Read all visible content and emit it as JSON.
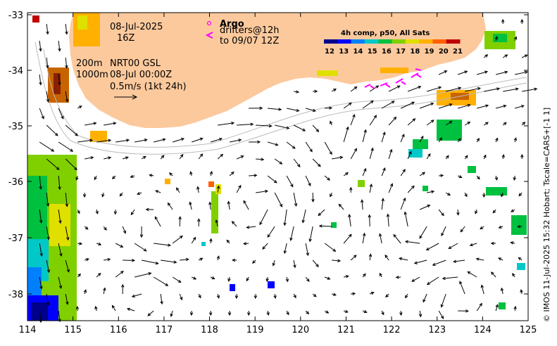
{
  "map": {
    "date": "08-Jul-2025",
    "hour": "16Z",
    "depth_shallow": "200m",
    "depth_deep": "1000m",
    "model": "NRT00 GSL",
    "model_time": "08-Jul 00:00Z",
    "velocity_scale": "0.5m/s (1kt 24h)",
    "argo_label": "Argo",
    "drifter_label": "drifters@12h",
    "drifter_range": "to 09/07 12Z",
    "credit": "© IMOS 11-Jul-2025 15:32 Hobart; Tscale=CARS+[-1 1]",
    "x_ticks": [
      "114",
      "115",
      "116",
      "117",
      "118",
      "119",
      "120",
      "121",
      "122",
      "123",
      "124",
      "125"
    ],
    "y_ticks": [
      "-33",
      "-34",
      "-35",
      "-36",
      "-37",
      "-38"
    ],
    "colors": {
      "land": "#fcc99d",
      "ocean": "#ffffff",
      "drifter": "#ff00ff"
    }
  },
  "legend": {
    "title": "4h comp, p50, All Sats",
    "ticks": [
      "12",
      "13",
      "14",
      "15",
      "16",
      "17",
      "18",
      "19",
      "20",
      "21"
    ],
    "colors": [
      "#00008b",
      "#0000ff",
      "#0080ff",
      "#00c8c8",
      "#00c040",
      "#80d000",
      "#e0e000",
      "#ffb000",
      "#ff6000",
      "#c00000"
    ]
  }
}
